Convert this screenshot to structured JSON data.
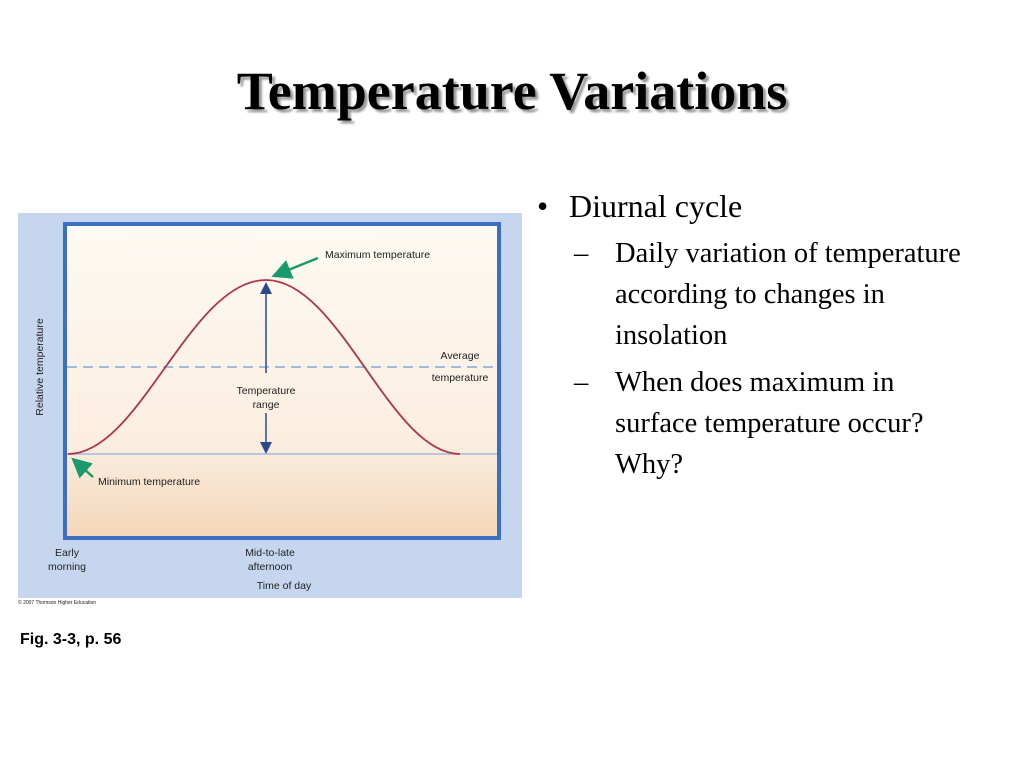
{
  "slide": {
    "title": "Temperature Variations",
    "bullets": [
      {
        "text": "Diurnal cycle",
        "sub": [
          "Daily variation of temperature according to changes in insolation",
          "When does maximum in surface temperature occur?  Why?"
        ]
      }
    ]
  },
  "figure": {
    "max_label": "Maximum temperature",
    "min_label": "Minimum temperature",
    "avg_label": [
      "Average",
      "temperature"
    ],
    "range_label": [
      "Temperature",
      "range"
    ],
    "y_axis_label": "Relative temperature",
    "x_labels": [
      [
        "Early",
        "morning"
      ],
      [
        "Mid-to-late",
        "afternoon"
      ]
    ],
    "x_axis_label": "Time of day",
    "credit": "© 2007 Thomson Higher Education"
  },
  "caption": "Fig. 3-3, p. 56"
}
